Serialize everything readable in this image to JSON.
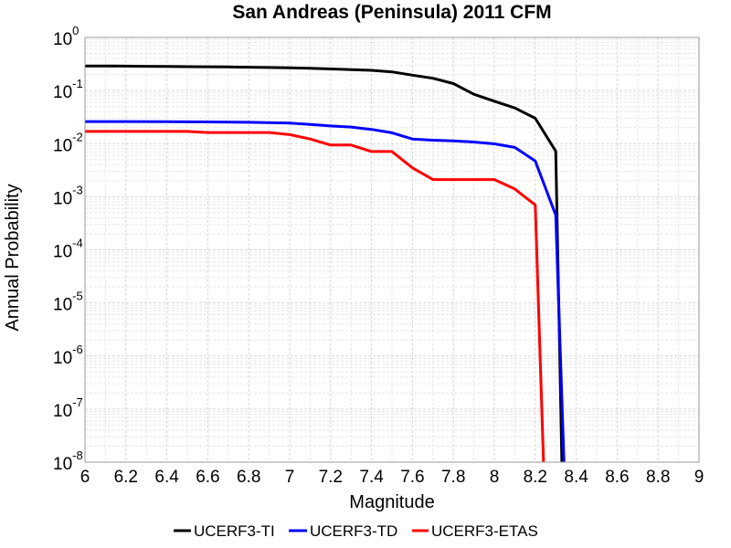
{
  "chart_data": {
    "type": "line",
    "title": "San Andreas (Peninsula) 2011 CFM",
    "xlabel": "Magnitude",
    "ylabel": "Annual Probability",
    "xlim": [
      6,
      9
    ],
    "ylim": [
      1e-08,
      1
    ],
    "y_scale": "log",
    "grid": true,
    "legend_position": "bottom",
    "x_ticks": [
      "6",
      "6.2",
      "6.4",
      "6.6",
      "6.8",
      "7",
      "7.2",
      "7.4",
      "7.6",
      "7.8",
      "8",
      "8.2",
      "8.4",
      "8.6",
      "8.8",
      "9"
    ],
    "y_ticks": [
      {
        "base": "10",
        "exp": "0"
      },
      {
        "base": "10",
        "exp": "-1"
      },
      {
        "base": "10",
        "exp": "-2"
      },
      {
        "base": "10",
        "exp": "-3"
      },
      {
        "base": "10",
        "exp": "-4"
      },
      {
        "base": "10",
        "exp": "-5"
      },
      {
        "base": "10",
        "exp": "-6"
      },
      {
        "base": "10",
        "exp": "-7"
      },
      {
        "base": "10",
        "exp": "-8"
      }
    ],
    "series": [
      {
        "name": "UCERF3-TI",
        "color": "#000000",
        "x": [
          6.0,
          6.1,
          6.2,
          6.3,
          6.4,
          6.5,
          6.6,
          6.7,
          6.8,
          6.9,
          7.0,
          7.1,
          7.2,
          7.3,
          7.4,
          7.5,
          7.6,
          7.7,
          7.8,
          7.9,
          8.0,
          8.1,
          8.2,
          8.3,
          8.33
        ],
        "y": [
          0.29,
          0.29,
          0.288,
          0.286,
          0.284,
          0.282,
          0.28,
          0.278,
          0.275,
          0.272,
          0.268,
          0.262,
          0.255,
          0.248,
          0.24,
          0.225,
          0.195,
          0.17,
          0.135,
          0.085,
          0.063,
          0.047,
          0.03,
          0.0072,
          1e-08
        ]
      },
      {
        "name": "UCERF3-TD",
        "color": "#0000ff",
        "x": [
          6.0,
          6.2,
          6.4,
          6.6,
          6.8,
          7.0,
          7.1,
          7.2,
          7.3,
          7.4,
          7.5,
          7.6,
          7.7,
          7.8,
          7.9,
          8.0,
          8.1,
          8.2,
          8.3,
          8.34
        ],
        "y": [
          0.026,
          0.026,
          0.0258,
          0.0256,
          0.0252,
          0.0244,
          0.023,
          0.0215,
          0.0205,
          0.0185,
          0.016,
          0.0122,
          0.0116,
          0.0113,
          0.0107,
          0.0099,
          0.0085,
          0.0047,
          0.00045,
          1e-08
        ]
      },
      {
        "name": "UCERF3-ETAS",
        "color": "#ff0000",
        "x": [
          6.0,
          6.5,
          6.6,
          6.9,
          7.0,
          7.1,
          7.2,
          7.3,
          7.4,
          7.5,
          7.6,
          7.7,
          7.8,
          7.9,
          8.0,
          8.1,
          8.2,
          8.24
        ],
        "y": [
          0.017,
          0.017,
          0.0162,
          0.0162,
          0.0148,
          0.0122,
          0.0094,
          0.0094,
          0.0071,
          0.0071,
          0.0035,
          0.0021,
          0.0021,
          0.0021,
          0.0021,
          0.0014,
          0.0007,
          1e-08
        ]
      }
    ]
  }
}
